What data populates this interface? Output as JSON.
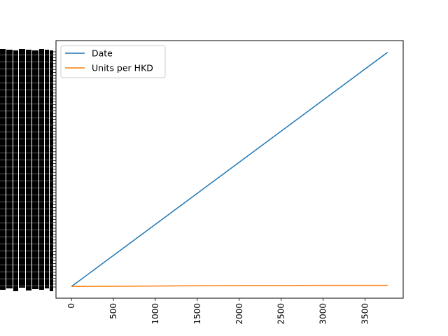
{
  "chart_data": {
    "type": "line",
    "title": "",
    "xlabel": "",
    "ylabel": "",
    "xlim": [
      -185,
      3955
    ],
    "ylim": [
      -0.05,
      1.05
    ],
    "x_ticks": [
      0,
      500,
      1000,
      1500,
      2000,
      2500,
      3000,
      3500
    ],
    "x_tick_labels": [
      "0",
      "500",
      "1000",
      "1500",
      "2000",
      "2500",
      "3000",
      "3500"
    ],
    "x_tick_rotation": "vertical",
    "y_tick_labels_note_unreadable": "",
    "grid": false,
    "legend": "top-left",
    "series": [
      {
        "name": "Date",
        "color": "#1f77b4",
        "x": [
          0,
          3769
        ],
        "y": [
          0.0,
          1.0
        ]
      },
      {
        "name": "Units per HKD",
        "color": "#ff7f0e",
        "x": [
          0,
          500,
          1000,
          1500,
          2000,
          2500,
          3000,
          3500,
          3769
        ],
        "y": [
          0.0,
          0.001,
          0.002,
          0.003,
          0.004,
          0.004,
          0.005,
          0.005,
          0.005
        ]
      }
    ]
  }
}
